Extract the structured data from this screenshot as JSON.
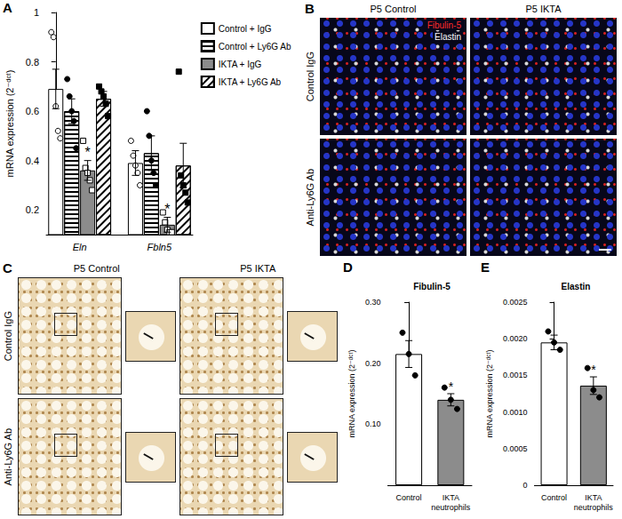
{
  "chart_data": [
    {
      "panel": "A",
      "type": "bar",
      "ylabel": "mRNA expression (2⁻ᵈᶜᵗ)",
      "categories": [
        "Eln",
        "Fbln5"
      ],
      "ylim": [
        0.1,
        1
      ],
      "yticks": [
        0.2,
        0.4,
        0.6,
        0.8,
        1
      ],
      "grid": false,
      "legend": "right",
      "series": [
        {
          "name": "Control + IgG",
          "color": "#ffffff",
          "marker": "circle-open",
          "values": [
            0.69,
            0.39
          ],
          "errors": [
            0.08,
            0.05
          ],
          "points": [
            [
              0.92,
              0.9,
              0.62,
              0.52,
              0.49
            ],
            [
              0.48,
              0.42,
              0.38,
              0.35,
              0.3
            ]
          ]
        },
        {
          "name": "Control + Ly6G Ab",
          "color": "#ffffff",
          "marker": "circle",
          "values": [
            0.6,
            0.43
          ],
          "errors": [
            0.05,
            0.07
          ],
          "points": [
            [
              0.73,
              0.66,
              0.6,
              0.56,
              0.45
            ],
            [
              0.6,
              0.5,
              0.4,
              0.35,
              0.3
            ]
          ]
        },
        {
          "name": "IKTA + IgG",
          "color": "#8c8c8c",
          "marker": "square-open",
          "values": [
            0.36,
            0.14
          ],
          "errors": [
            0.04,
            0.03
          ],
          "annotations": [
            "*",
            "*"
          ],
          "points": [
            [
              0.48,
              0.37,
              0.35,
              0.32,
              0.28
            ],
            [
              0.19,
              0.15,
              0.12,
              0.11,
              0.11
            ]
          ]
        },
        {
          "name": "IKTA + Ly6G Ab",
          "color": "#ffffff",
          "marker": "square",
          "values": [
            0.65,
            0.38
          ],
          "errors": [
            0.03,
            0.09
          ],
          "points": [
            [
              0.7,
              0.68,
              0.66,
              0.63,
              0.58
            ],
            [
              0.76,
              0.34,
              0.3,
              0.27,
              0.23
            ]
          ]
        }
      ]
    },
    {
      "panel": "D",
      "type": "bar",
      "title": "Fibulin-5",
      "ylabel": "mRNA expression (2⁻ᵈᶜᵗ)",
      "categories": [
        "Control",
        "IKTA neutrophils"
      ],
      "colors": [
        "#ffffff",
        "#8c8c8c"
      ],
      "marker": "circle",
      "values": [
        0.215,
        0.14
      ],
      "errors": [
        0.022,
        0.01
      ],
      "annotations": [
        null,
        "*"
      ],
      "points": [
        [
          0.25,
          0.215,
          0.18
        ],
        [
          0.16,
          0.14,
          0.125
        ]
      ],
      "ylim": [
        0,
        0.3
      ],
      "yticks": [
        {
          "value": 0.1,
          "label": "0.10"
        },
        {
          "value": 0.2,
          "label": "0.20"
        },
        {
          "value": 0.3,
          "label": "0.30"
        }
      ],
      "grid": false
    },
    {
      "panel": "E",
      "type": "bar",
      "title": "Elastin",
      "ylabel": "mRNA expression (2⁻ᵈᶜᵗ)",
      "categories": [
        "Control",
        "IKTA neutrophils"
      ],
      "colors": [
        "#ffffff",
        "#8c8c8c"
      ],
      "marker": "circle",
      "values": [
        0.00195,
        0.00136
      ],
      "errors": [
        0.0001,
        0.00012
      ],
      "annotations": [
        null,
        "*"
      ],
      "points": [
        [
          0.0021,
          0.00195,
          0.00185
        ],
        [
          0.0016,
          0.0013,
          0.0012
        ]
      ],
      "ylim": [
        0,
        0.0025
      ],
      "yticks": [
        0,
        0.0005,
        {
          "value": 0.001,
          "label": "0.0010"
        },
        0.0015,
        {
          "value": 0.002,
          "label": "0.0020"
        },
        0.0025
      ],
      "grid": false
    }
  ],
  "images": [
    {
      "panel": "B",
      "type": "fluorescence",
      "columns": [
        "P5 Control",
        "P5 IKTA"
      ],
      "rows": [
        "Control IgG",
        "Anti-Ly6G Ab"
      ],
      "stain_labels": [
        {
          "text": "Fibulin-5",
          "color": "#ff2a2a"
        },
        {
          "text": "Elastin",
          "color": "#ffffff"
        }
      ]
    },
    {
      "panel": "C",
      "type": "histology",
      "columns": [
        "P5 Control",
        "P5 IKTA"
      ],
      "rows": [
        "Control IgG",
        "Anti-Ly6G Ab"
      ]
    }
  ]
}
